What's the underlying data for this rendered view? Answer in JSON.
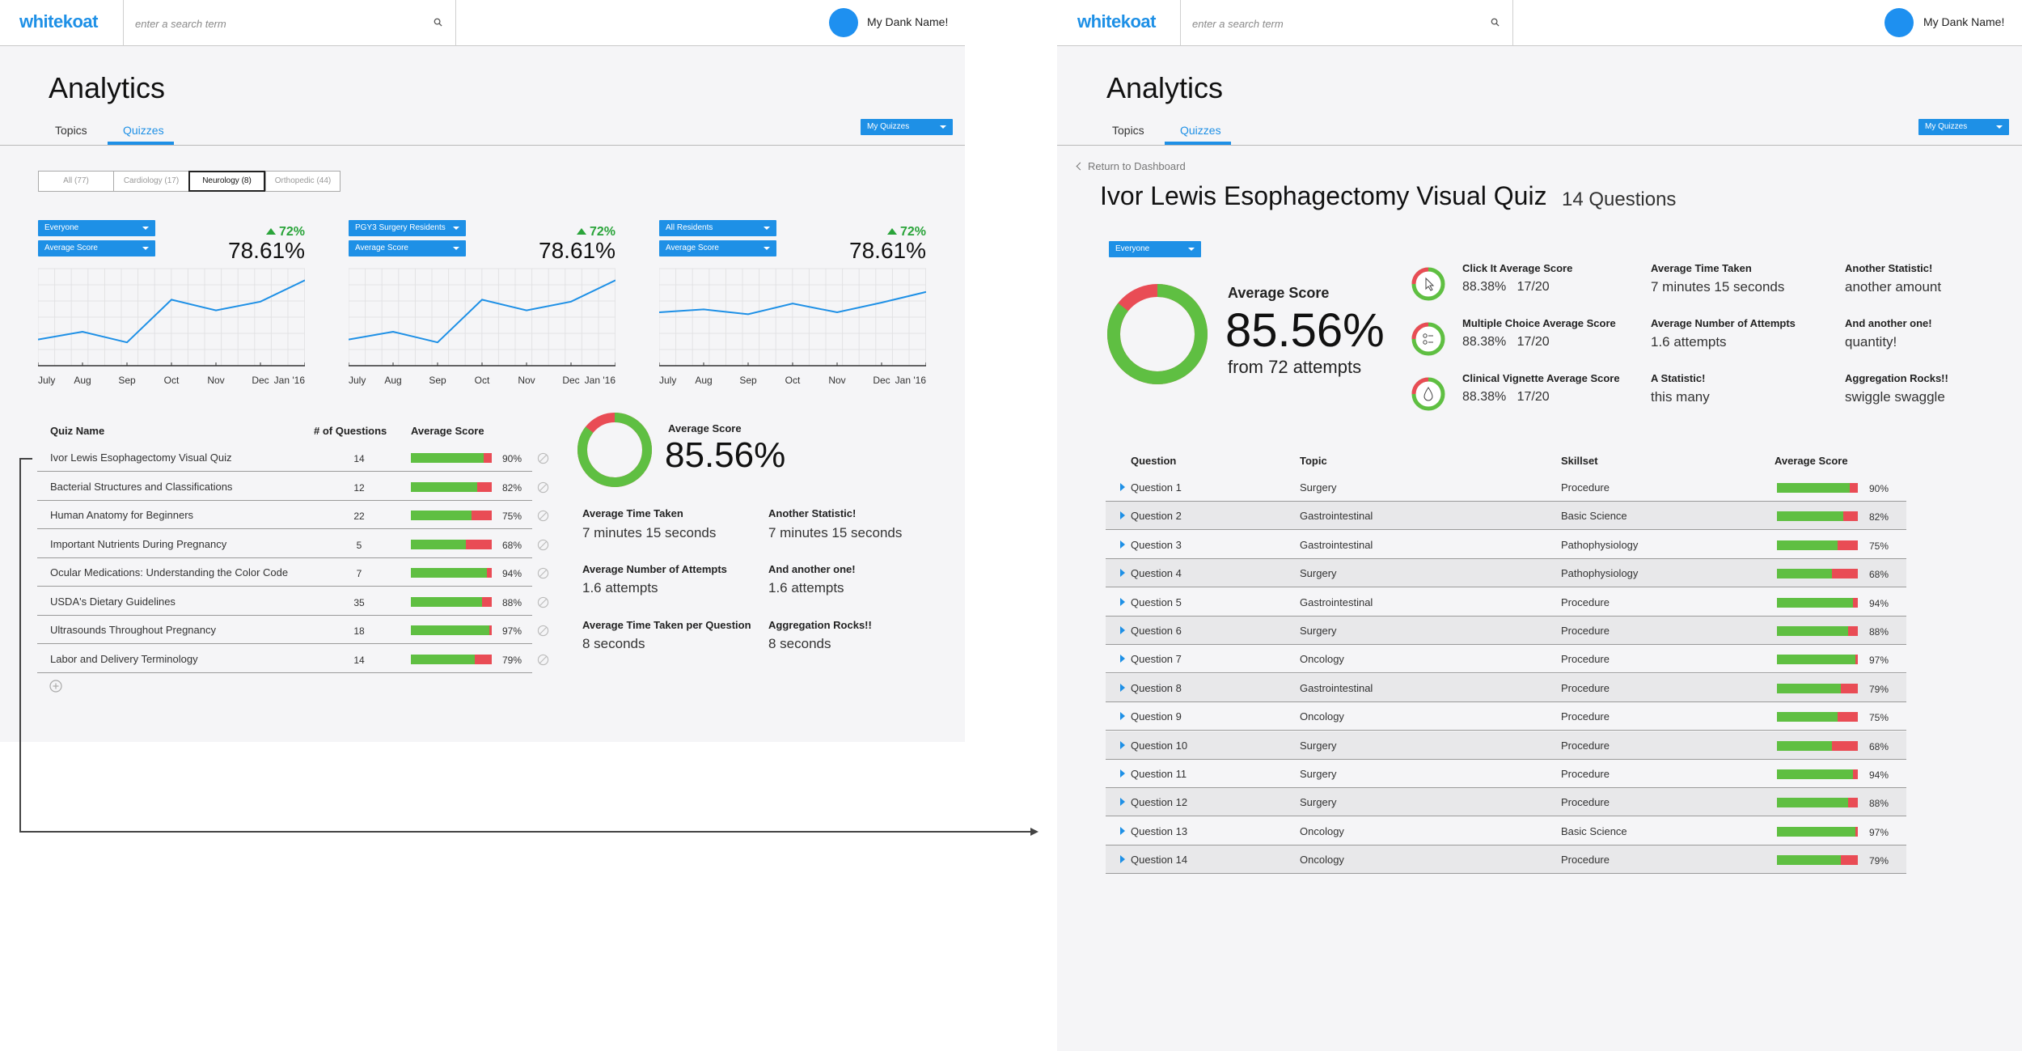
{
  "header": {
    "logo": "whitekoat",
    "search_placeholder": "enter a search term",
    "username": "My Dank Name!"
  },
  "page": {
    "title": "Analytics",
    "tabs": [
      "Topics",
      "Quizzes"
    ],
    "active_tab": "Quizzes",
    "scope_select": "My Quizzes"
  },
  "colors": {
    "accent": "#1e90e6",
    "good": "#5fbf42",
    "bad": "#e94c55",
    "up": "#2aa43a"
  },
  "filters": [
    {
      "label": "All (77)",
      "active": false
    },
    {
      "label": "Cardiology (17)",
      "active": false
    },
    {
      "label": "Neurology (8)",
      "active": true
    },
    {
      "label": "Orthopedic (44)",
      "active": false
    }
  ],
  "chart_data": [
    {
      "type": "line",
      "audience": "Everyone",
      "metric": "Average Score",
      "change": "72%",
      "value": "78.61%",
      "categories": [
        "July",
        "Aug",
        "Sep",
        "Oct",
        "Nov",
        "Dec",
        "Jan '16"
      ],
      "values": [
        0.27,
        0.35,
        0.24,
        0.68,
        0.57,
        0.66,
        0.88
      ]
    },
    {
      "type": "line",
      "audience": "PGY3 Surgery Residents",
      "metric": "Average Score",
      "change": "72%",
      "value": "78.61%",
      "categories": [
        "July",
        "Aug",
        "Sep",
        "Oct",
        "Nov",
        "Dec",
        "Jan '16"
      ],
      "values": [
        0.27,
        0.35,
        0.24,
        0.68,
        0.57,
        0.66,
        0.88
      ]
    },
    {
      "type": "line",
      "audience": "All Residents",
      "metric": "Average Score",
      "change": "72%",
      "value": "78.61%",
      "categories": [
        "July",
        "Aug",
        "Sep",
        "Oct",
        "Nov",
        "Dec",
        "Jan '16"
      ],
      "values": [
        0.55,
        0.58,
        0.53,
        0.64,
        0.55,
        0.65,
        0.76
      ]
    }
  ],
  "quiz_table": {
    "headers": [
      "Quiz Name",
      "# of Questions",
      "Average Score"
    ],
    "rows": [
      {
        "name": "Ivor Lewis Esophagectomy Visual Quiz",
        "count": "14",
        "score": 90,
        "pct": "90%"
      },
      {
        "name": "Bacterial Structures and Classifications",
        "count": "12",
        "score": 82,
        "pct": "82%"
      },
      {
        "name": "Human Anatomy for Beginners",
        "count": "22",
        "score": 75,
        "pct": "75%"
      },
      {
        "name": "Important Nutrients During Pregnancy",
        "count": "5",
        "score": 68,
        "pct": "68%"
      },
      {
        "name": "Ocular Medications: Understanding the Color Code",
        "count": "7",
        "score": 94,
        "pct": "94%"
      },
      {
        "name": "USDA's Dietary Guidelines",
        "count": "35",
        "score": 88,
        "pct": "88%"
      },
      {
        "name": "Ultrasounds Throughout Pregnancy",
        "count": "18",
        "score": 97,
        "pct": "97%"
      },
      {
        "name": "Labor and Delivery Terminology",
        "count": "14",
        "score": 79,
        "pct": "79%"
      }
    ]
  },
  "summary": {
    "avg_label": "Average Score",
    "avg_value": "85.56%",
    "avg_fraction": 0.8556,
    "stats": [
      {
        "label": "Average Time Taken",
        "value": "7 minutes 15 seconds"
      },
      {
        "label": "Another Statistic!",
        "value": "7 minutes 15 seconds"
      },
      {
        "label": "Average Number of Attempts",
        "value": "1.6 attempts"
      },
      {
        "label": "And another one!",
        "value": "1.6 attempts"
      },
      {
        "label": "Average Time Taken per Question",
        "value": "8 seconds"
      },
      {
        "label": "Aggregation Rocks!!",
        "value": "8 seconds"
      }
    ]
  },
  "detail": {
    "back": "Return to Dashboard",
    "title": "Ivor Lewis Esophagectomy Visual Quiz",
    "question_count": "14 Questions",
    "audience": "Everyone",
    "avg_label": "Average Score",
    "avg_value": "85.56%",
    "avg_sub": "from 72 attempts",
    "types": [
      {
        "label": "Click It Average Score",
        "score": "88.38%",
        "ratio": "17/20",
        "icon": "pointer-icon"
      },
      {
        "label": "Multiple Choice Average Score",
        "score": "88.38%",
        "ratio": "17/20",
        "icon": "choice-icon"
      },
      {
        "label": "Clinical Vignette Average Score",
        "score": "88.38%",
        "ratio": "17/20",
        "icon": "drop-icon"
      }
    ],
    "stats": [
      {
        "label": "Average Time Taken",
        "value": "7 minutes 15 seconds"
      },
      {
        "label": "Another Statistic!",
        "value": "another amount"
      },
      {
        "label": "Average Number of Attempts",
        "value": "1.6 attempts"
      },
      {
        "label": "And another one!",
        "value": "quantity!"
      },
      {
        "label": "A Statistic!",
        "value": "this many"
      },
      {
        "label": "Aggregation Rocks!!",
        "value": "swiggle swaggle"
      }
    ],
    "table": {
      "headers": [
        "Question",
        "Topic",
        "Skillset",
        "Average Score"
      ],
      "rows": [
        {
          "q": "Question 1",
          "topic": "Surgery",
          "skill": "Procedure",
          "score": 90,
          "pct": "90%"
        },
        {
          "q": "Question 2",
          "topic": "Gastrointestinal",
          "skill": "Basic Science",
          "score": 82,
          "pct": "82%"
        },
        {
          "q": "Question 3",
          "topic": "Gastrointestinal",
          "skill": "Pathophysiology",
          "score": 75,
          "pct": "75%"
        },
        {
          "q": "Question 4",
          "topic": "Surgery",
          "skill": "Pathophysiology",
          "score": 68,
          "pct": "68%"
        },
        {
          "q": "Question 5",
          "topic": "Gastrointestinal",
          "skill": "Procedure",
          "score": 94,
          "pct": "94%"
        },
        {
          "q": "Question 6",
          "topic": "Surgery",
          "skill": "Procedure",
          "score": 88,
          "pct": "88%"
        },
        {
          "q": "Question 7",
          "topic": "Oncology",
          "skill": "Procedure",
          "score": 97,
          "pct": "97%"
        },
        {
          "q": "Question 8",
          "topic": "Gastrointestinal",
          "skill": "Procedure",
          "score": 79,
          "pct": "79%"
        },
        {
          "q": "Question 9",
          "topic": "Oncology",
          "skill": "Procedure",
          "score": 75,
          "pct": "75%"
        },
        {
          "q": "Question 10",
          "topic": "Surgery",
          "skill": "Procedure",
          "score": 68,
          "pct": "68%"
        },
        {
          "q": "Question 11",
          "topic": "Surgery",
          "skill": "Procedure",
          "score": 94,
          "pct": "94%"
        },
        {
          "q": "Question 12",
          "topic": "Surgery",
          "skill": "Procedure",
          "score": 88,
          "pct": "88%"
        },
        {
          "q": "Question 13",
          "topic": "Oncology",
          "skill": "Basic Science",
          "score": 97,
          "pct": "97%"
        },
        {
          "q": "Question 14",
          "topic": "Oncology",
          "skill": "Procedure",
          "score": 79,
          "pct": "79%"
        }
      ]
    }
  }
}
